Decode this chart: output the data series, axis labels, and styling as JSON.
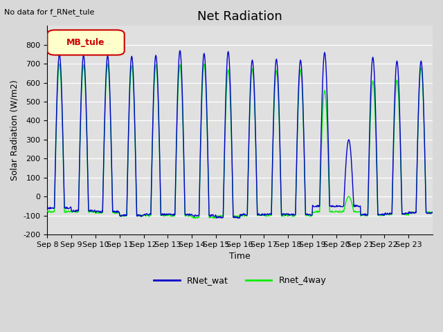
{
  "title": "Net Radiation",
  "xlabel": "Time",
  "ylabel": "Solar Radiation (W/m2)",
  "ylim": [
    -200,
    900
  ],
  "yticks": [
    -200,
    -100,
    0,
    100,
    200,
    300,
    400,
    500,
    600,
    700,
    800
  ],
  "x_labels": [
    "Sep 8",
    "Sep 9",
    "Sep 10",
    "Sep 11",
    "Sep 12",
    "Sep 13",
    "Sep 14",
    "Sep 15",
    "Sep 16",
    "Sep 17",
    "Sep 18",
    "Sep 19",
    "Sep 20",
    "Sep 21",
    "Sep 22",
    "Sep 23"
  ],
  "line1_color": "#0000cc",
  "line2_color": "#00ee00",
  "line1_label": "RNet_wat",
  "line2_label": "Rnet_4way",
  "bg_color": "#e0e0e0",
  "legend_label": "MB_tule",
  "legend_bg": "#ffffcc",
  "legend_border": "#cc0000",
  "annotation": "No data for f_RNet_tule",
  "title_fontsize": 13,
  "axis_fontsize": 9,
  "tick_fontsize": 8,
  "days": 16,
  "pts_per_day": 48,
  "peaks_blue": [
    750,
    745,
    743,
    740,
    745,
    770,
    755,
    765,
    720,
    725,
    720,
    760,
    300,
    735,
    715,
    715
  ],
  "peaks_green": [
    700,
    695,
    700,
    690,
    695,
    695,
    700,
    670,
    675,
    665,
    670,
    560,
    0,
    610,
    615,
    680
  ],
  "night_blue": [
    -60,
    -75,
    -80,
    -100,
    -95,
    -95,
    -100,
    -110,
    -95,
    -95,
    -95,
    -50,
    -50,
    -95,
    -90,
    -85
  ],
  "night_green": [
    -80,
    -80,
    -85,
    -100,
    -100,
    -100,
    -110,
    -105,
    -100,
    -100,
    -100,
    -80,
    -80,
    -100,
    -95,
    -85
  ]
}
